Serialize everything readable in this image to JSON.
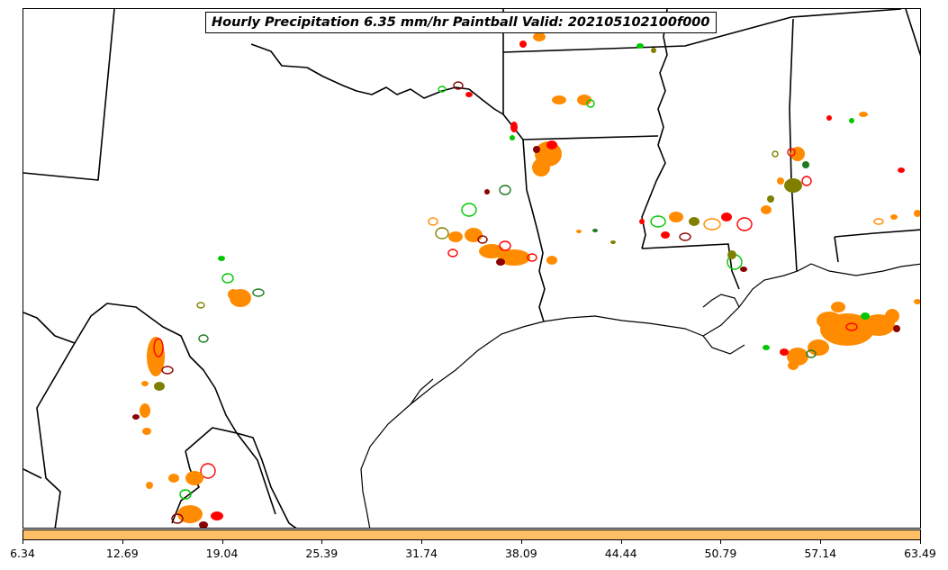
{
  "title": "Hourly Precipitation 6.35 mm/hr Paintball Valid: 202105102100f000",
  "map": {
    "region": "South-central United States (Texas, Louisiana, Mississippi, Arkansas, Oklahoma, northern Mexico)",
    "boundary_color": "#000000",
    "paintball_colors": [
      "#ff8c00",
      "#ff0000",
      "#00c800",
      "#8b0000",
      "#808000",
      "#1e7b1e",
      "#ffa54f"
    ]
  },
  "colorbar": {
    "color": "#ffbf66",
    "ticks": [
      "6.34",
      "12.69",
      "19.04",
      "25.39",
      "31.74",
      "38.09",
      "44.44",
      "50.79",
      "57.14",
      "63.49"
    ]
  }
}
